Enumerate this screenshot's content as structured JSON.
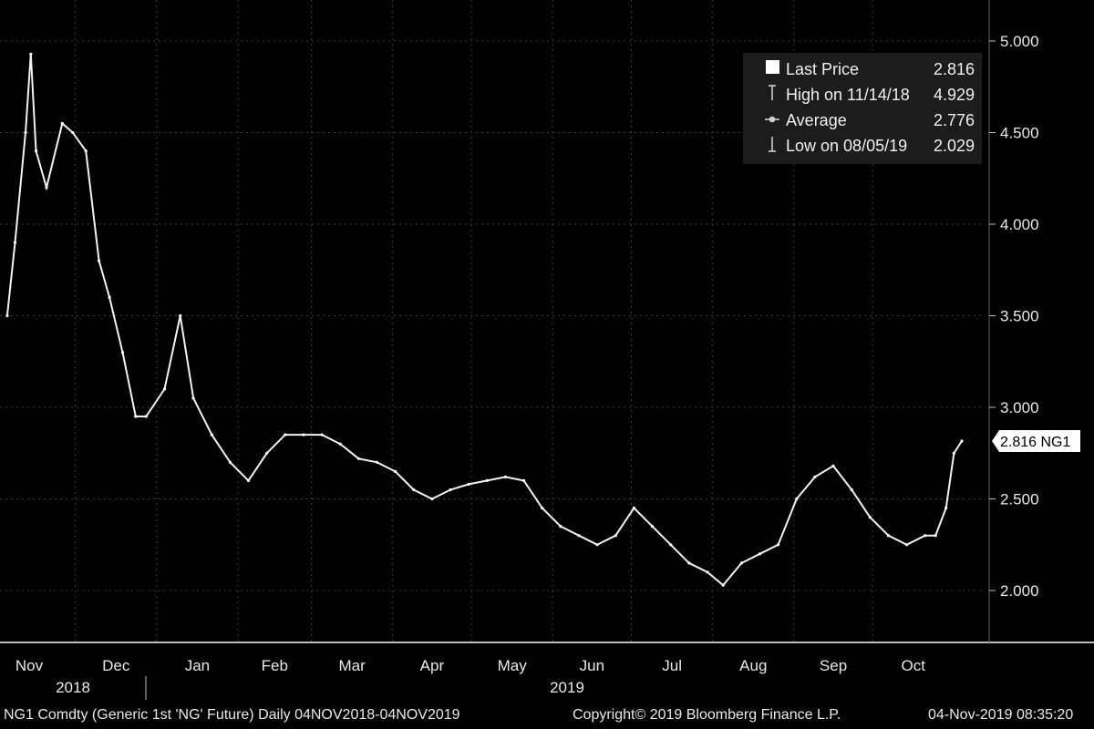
{
  "chart_data": {
    "type": "line",
    "ticker": "NG1",
    "y_ticks": [
      "5.000",
      "4.500",
      "4.000",
      "3.500",
      "3.000",
      "2.500",
      "2.000"
    ],
    "ylim": [
      1.75,
      5.2
    ],
    "months": [
      "Nov",
      "Dec",
      "Jan",
      "Feb",
      "Mar",
      "Apr",
      "May",
      "Jun",
      "Jul",
      "Aug",
      "Sep",
      "Oct"
    ],
    "years": [
      "2018",
      "2019"
    ],
    "series": [
      {
        "name": "Last Price",
        "x": [
          "2018-11-05",
          "2018-11-08",
          "2018-11-12",
          "2018-11-14",
          "2018-11-16",
          "2018-11-20",
          "2018-11-26",
          "2018-11-30",
          "2018-12-05",
          "2018-12-10",
          "2018-12-14",
          "2018-12-19",
          "2018-12-24",
          "2018-12-28",
          "2019-01-04",
          "2019-01-10",
          "2019-01-15",
          "2019-01-22",
          "2019-01-29",
          "2019-02-05",
          "2019-02-12",
          "2019-02-19",
          "2019-02-26",
          "2019-03-05",
          "2019-03-12",
          "2019-03-19",
          "2019-03-26",
          "2019-04-02",
          "2019-04-09",
          "2019-04-16",
          "2019-04-23",
          "2019-04-30",
          "2019-05-07",
          "2019-05-14",
          "2019-05-21",
          "2019-05-28",
          "2019-06-04",
          "2019-06-11",
          "2019-06-18",
          "2019-06-25",
          "2019-07-02",
          "2019-07-09",
          "2019-07-16",
          "2019-07-23",
          "2019-07-30",
          "2019-08-05",
          "2019-08-12",
          "2019-08-19",
          "2019-08-26",
          "2019-09-02",
          "2019-09-09",
          "2019-09-16",
          "2019-09-23",
          "2019-09-30",
          "2019-10-07",
          "2019-10-14",
          "2019-10-21",
          "2019-10-25",
          "2019-10-29",
          "2019-11-01",
          "2019-11-04"
        ],
        "values": [
          3.5,
          3.9,
          4.5,
          4.929,
          4.4,
          4.2,
          4.55,
          4.5,
          4.4,
          3.8,
          3.6,
          3.3,
          2.95,
          2.95,
          3.1,
          3.5,
          3.05,
          2.85,
          2.7,
          2.6,
          2.75,
          2.85,
          2.85,
          2.85,
          2.8,
          2.72,
          2.7,
          2.65,
          2.55,
          2.5,
          2.55,
          2.58,
          2.6,
          2.62,
          2.6,
          2.45,
          2.35,
          2.3,
          2.25,
          2.3,
          2.45,
          2.35,
          2.25,
          2.15,
          2.1,
          2.029,
          2.15,
          2.2,
          2.25,
          2.5,
          2.62,
          2.68,
          2.55,
          2.4,
          2.3,
          2.25,
          2.3,
          2.3,
          2.45,
          2.75,
          2.816
        ]
      }
    ],
    "legend": {
      "last_label": "Last Price",
      "last_value": "2.816",
      "high_label": "High on 11/14/18",
      "high_value": "4.929",
      "avg_label": "Average",
      "avg_value": "2.776",
      "low_label": "Low on 08/05/19",
      "low_value": "2.029"
    },
    "last_price_tag": "2.816 NG1",
    "grid": true,
    "legend_position": "top-right"
  },
  "footer": {
    "left": "NG1 Comdty (Generic 1st 'NG' Future)   Daily 04NOV2018-04NOV2019",
    "copyright": "Copyright© 2019 Bloomberg Finance L.P.",
    "timestamp": "04-Nov-2019 08:35:20"
  }
}
